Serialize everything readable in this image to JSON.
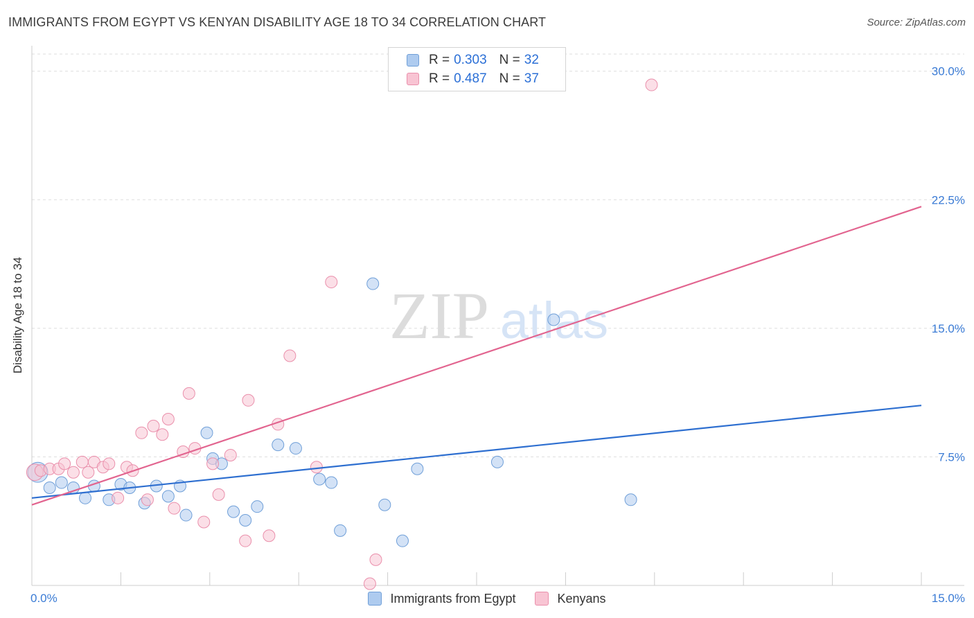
{
  "title": "IMMIGRANTS FROM EGYPT VS KENYAN DISABILITY AGE 18 TO 34 CORRELATION CHART",
  "source": "Source: ZipAtlas.com",
  "watermark": {
    "zip": "ZIP",
    "atlas": "atlas"
  },
  "colors": {
    "egypt_fill": "#aecbef",
    "egypt_stroke": "#6f9fd8",
    "egypt_line": "#2e6fd0",
    "kenya_fill": "#f8c4d3",
    "kenya_stroke": "#ea8fab",
    "kenya_line": "#e2648f",
    "tick_label": "#3a7bd5",
    "grid": "#dddddd"
  },
  "legend_top": {
    "rows": [
      {
        "series": "egypt",
        "r_label": "R =",
        "r_value": "0.303",
        "n_label": "N =",
        "n_value": "32"
      },
      {
        "series": "kenya",
        "r_label": "R =",
        "r_value": "0.487",
        "n_label": "N =",
        "n_value": "37"
      }
    ]
  },
  "legend_bottom": {
    "egypt": "Immigrants from Egypt",
    "kenya": "Kenyans"
  },
  "chart_data": {
    "type": "scatter",
    "title": "IMMIGRANTS FROM EGYPT VS KENYAN DISABILITY AGE 18 TO 34 CORRELATION CHART",
    "xlabel": "",
    "ylabel": "Disability Age 18 to 34",
    "xlim": [
      0,
      15
    ],
    "ylim": [
      0,
      31
    ],
    "x_tick_labels": [
      "0.0%",
      "15.0%"
    ],
    "y_ticks": [
      7.5,
      15.0,
      22.5,
      30.0
    ],
    "y_tick_labels": [
      "7.5%",
      "15.0%",
      "22.5%",
      "30.0%"
    ],
    "grid": true,
    "legend": "top-center",
    "series": [
      {
        "name": "Immigrants from Egypt",
        "key": "egypt",
        "R": 0.303,
        "N": 32,
        "trend": {
          "x": [
            0,
            15
          ],
          "y": [
            5.1,
            10.5
          ]
        },
        "points": [
          [
            0.1,
            6.6,
            1.7
          ],
          [
            0.3,
            5.7,
            1
          ],
          [
            0.5,
            6.0,
            1
          ],
          [
            0.7,
            5.7,
            1
          ],
          [
            0.9,
            5.1,
            1
          ],
          [
            1.05,
            5.8,
            1
          ],
          [
            1.3,
            5.0,
            1
          ],
          [
            1.5,
            5.9,
            1
          ],
          [
            1.65,
            5.7,
            1
          ],
          [
            1.9,
            4.8,
            1
          ],
          [
            2.1,
            5.8,
            1
          ],
          [
            2.3,
            5.2,
            1
          ],
          [
            2.5,
            5.8,
            1
          ],
          [
            2.6,
            4.1,
            1
          ],
          [
            2.95,
            8.9,
            1
          ],
          [
            3.05,
            7.4,
            1
          ],
          [
            3.2,
            7.1,
            1
          ],
          [
            3.4,
            4.3,
            1
          ],
          [
            3.6,
            3.8,
            1
          ],
          [
            3.8,
            4.6,
            1
          ],
          [
            4.15,
            8.2,
            1
          ],
          [
            4.45,
            8.0,
            1
          ],
          [
            4.85,
            6.2,
            1
          ],
          [
            5.05,
            6.0,
            1
          ],
          [
            5.2,
            3.2,
            1
          ],
          [
            5.75,
            17.6,
            1
          ],
          [
            5.95,
            4.7,
            1
          ],
          [
            6.25,
            2.6,
            1
          ],
          [
            6.5,
            6.8,
            1
          ],
          [
            7.85,
            7.2,
            1
          ],
          [
            8.8,
            15.5,
            1
          ],
          [
            10.1,
            5.0,
            1
          ]
        ]
      },
      {
        "name": "Kenyans",
        "key": "kenya",
        "R": 0.487,
        "N": 37,
        "trend": {
          "x": [
            0,
            15
          ],
          "y": [
            4.7,
            22.1
          ]
        },
        "points": [
          [
            0.05,
            6.6,
            1.4
          ],
          [
            0.15,
            6.7,
            1
          ],
          [
            0.3,
            6.8,
            1
          ],
          [
            0.45,
            6.8,
            1
          ],
          [
            0.55,
            7.1,
            1
          ],
          [
            0.7,
            6.6,
            1
          ],
          [
            0.85,
            7.2,
            1
          ],
          [
            0.95,
            6.6,
            1
          ],
          [
            1.05,
            7.2,
            1
          ],
          [
            1.2,
            6.9,
            1
          ],
          [
            1.3,
            7.1,
            1
          ],
          [
            1.45,
            5.1,
            1
          ],
          [
            1.6,
            6.9,
            1
          ],
          [
            1.7,
            6.7,
            1
          ],
          [
            1.85,
            8.9,
            1
          ],
          [
            1.95,
            5.0,
            1
          ],
          [
            2.05,
            9.3,
            1
          ],
          [
            2.2,
            8.8,
            1
          ],
          [
            2.3,
            9.7,
            1
          ],
          [
            2.4,
            4.5,
            1
          ],
          [
            2.55,
            7.8,
            1
          ],
          [
            2.65,
            11.2,
            1
          ],
          [
            2.75,
            8.0,
            1
          ],
          [
            2.9,
            3.7,
            1
          ],
          [
            3.05,
            7.1,
            1
          ],
          [
            3.15,
            5.3,
            1
          ],
          [
            3.35,
            7.6,
            1
          ],
          [
            3.6,
            2.6,
            1
          ],
          [
            3.65,
            10.8,
            1
          ],
          [
            4.0,
            2.9,
            1
          ],
          [
            4.15,
            9.4,
            1
          ],
          [
            4.35,
            13.4,
            1
          ],
          [
            4.8,
            6.9,
            1
          ],
          [
            5.05,
            17.7,
            1
          ],
          [
            5.7,
            0.1,
            1
          ],
          [
            5.8,
            1.5,
            1
          ],
          [
            10.45,
            29.2,
            1
          ]
        ]
      }
    ]
  }
}
